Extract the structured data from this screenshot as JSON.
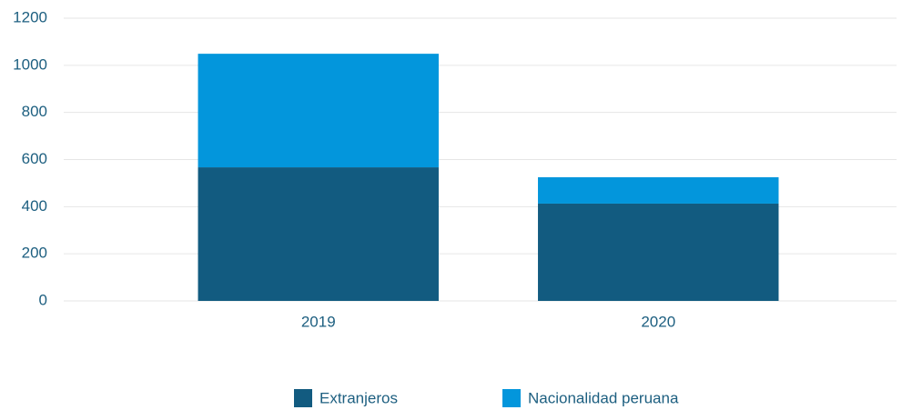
{
  "chart_data": {
    "type": "stacked_bar",
    "categories": [
      "2019",
      "2020"
    ],
    "series": [
      {
        "name": "Extranjeros",
        "color": "#125b80",
        "values": [
          567,
          413
        ]
      },
      {
        "name": "Nacionalidad peruana",
        "color": "#0396dc",
        "values": [
          482,
          112
        ]
      }
    ],
    "ylim": [
      0,
      1200
    ],
    "yticks": [
      0,
      200,
      400,
      600,
      800,
      1000,
      1200
    ],
    "grid": true,
    "legend": "bottom"
  }
}
